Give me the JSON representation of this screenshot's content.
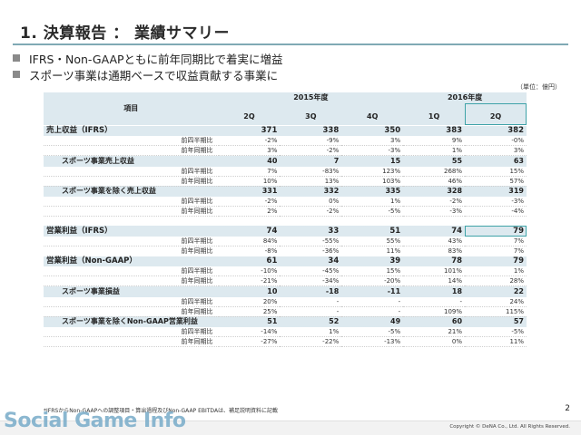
{
  "title": "1. 決算報告 ： 業績サマリー",
  "bullets": [
    "IFRS・Non-GAAPともに前年同期比で着実に増益",
    "スポーツ事業は通期ベースで収益貢献する事業に"
  ],
  "unit": "（単位：億円）",
  "header": {
    "item": "項目",
    "year2015": "2015年度",
    "year2016": "2016年度",
    "quarters": [
      "2Q",
      "3Q",
      "4Q",
      "1Q",
      "2Q"
    ]
  },
  "rows": {
    "rev": {
      "label": "売上収益（IFRS）",
      "values": [
        "371",
        "338",
        "350",
        "383",
        "382"
      ]
    },
    "rev_qoq": {
      "label": "前四半期比",
      "values": [
        "-2%",
        "-9%",
        "3%",
        "9%",
        "-0%"
      ]
    },
    "rev_yoy": {
      "label": "前年同期比",
      "values": [
        "3%",
        "-2%",
        "-3%",
        "1%",
        "3%"
      ]
    },
    "sports_rev": {
      "label": "スポーツ事業売上収益",
      "values": [
        "40",
        "7",
        "15",
        "55",
        "63"
      ]
    },
    "sports_rev_qoq": {
      "label": "前四半期比",
      "values": [
        "7%",
        "-83%",
        "123%",
        "268%",
        "15%"
      ]
    },
    "sports_rev_yoy": {
      "label": "前年同期比",
      "values": [
        "10%",
        "13%",
        "103%",
        "46%",
        "57%"
      ]
    },
    "ex_rev": {
      "label": "スポーツ事業を除く売上収益",
      "values": [
        "331",
        "332",
        "335",
        "328",
        "319"
      ]
    },
    "ex_rev_qoq": {
      "label": "前四半期比",
      "values": [
        "-2%",
        "0%",
        "1%",
        "-2%",
        "-3%"
      ]
    },
    "ex_rev_yoy": {
      "label": "前年同期比",
      "values": [
        "2%",
        "-2%",
        "-5%",
        "-3%",
        "-4%"
      ]
    },
    "op": {
      "label": "営業利益（IFRS）",
      "values": [
        "74",
        "33",
        "51",
        "74",
        "79"
      ]
    },
    "op_qoq": {
      "label": "前四半期比",
      "values": [
        "84%",
        "-55%",
        "55%",
        "43%",
        "7%"
      ]
    },
    "op_yoy": {
      "label": "前年同期比",
      "values": [
        "-8%",
        "-36%",
        "11%",
        "83%",
        "7%"
      ]
    },
    "ng": {
      "label": "営業利益（Non-GAAP）",
      "values": [
        "61",
        "34",
        "39",
        "78",
        "79"
      ]
    },
    "ng_qoq": {
      "label": "前四半期比",
      "values": [
        "-10%",
        "-45%",
        "15%",
        "101%",
        "1%"
      ]
    },
    "ng_yoy": {
      "label": "前年同期比",
      "values": [
        "-21%",
        "-34%",
        "-20%",
        "14%",
        "28%"
      ]
    },
    "sp": {
      "label": "スポーツ事業損益",
      "values": [
        "10",
        "-18",
        "-11",
        "18",
        "22"
      ]
    },
    "sp_qoq": {
      "label": "前四半期比",
      "values": [
        "20%",
        "-",
        "-",
        "-",
        "24%"
      ]
    },
    "sp_yoy": {
      "label": "前年同期比",
      "values": [
        "25%",
        "-",
        "-",
        "109%",
        "115%"
      ]
    },
    "exng": {
      "label": "スポーツ事業を除くNon-GAAP営業利益",
      "values": [
        "51",
        "52",
        "49",
        "60",
        "57"
      ]
    },
    "exng_qoq": {
      "label": "前四半期比",
      "values": [
        "-14%",
        "1%",
        "-5%",
        "21%",
        "-5%"
      ]
    },
    "exng_yoy": {
      "label": "前年同期比",
      "values": [
        "-27%",
        "-22%",
        "-13%",
        "0%",
        "11%"
      ]
    }
  },
  "footnote": "*IFRSからNon-GAAPへの調整項目・算出過程及びNon-GAAP EBITDAは、補足説明資料に記載",
  "page_number": "2",
  "copyright": "Copyright © DeNA Co., Ltd. All Rights Reserved.",
  "watermark": "Social Game Info",
  "colors": {
    "header_bg": "#dde9ef",
    "highlight": "#3fa3a8",
    "title_rule": "#7fa9b4"
  }
}
